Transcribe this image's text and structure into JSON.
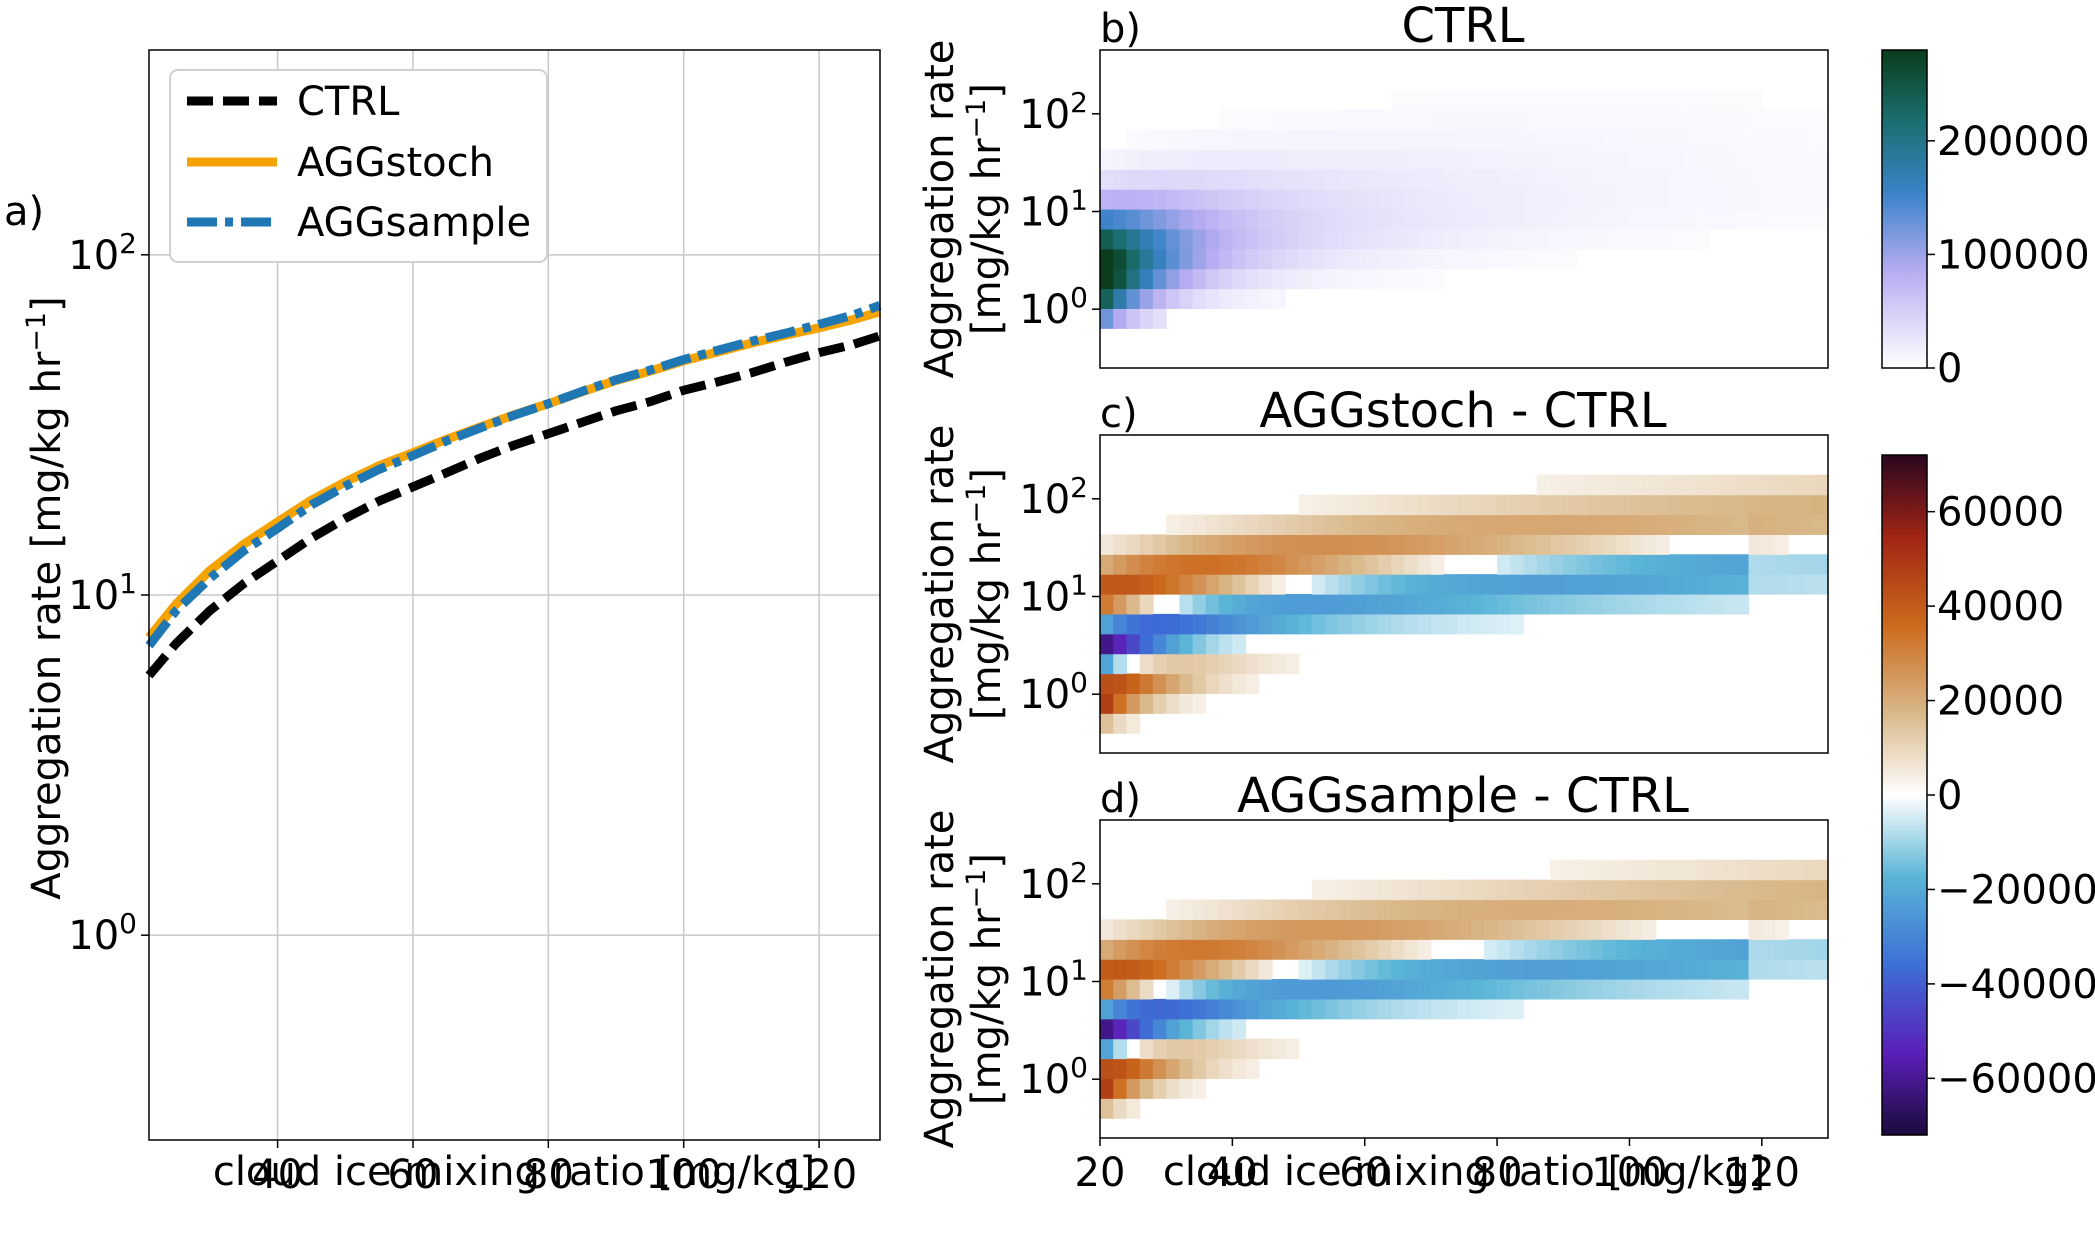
{
  "chart_data": [
    {
      "panel": "a)",
      "type": "line",
      "title": "",
      "xlabel": "cloud ice mixing ratio [mg/kg]",
      "ylabel": "Aggregation rate [mg/kg hr",
      "ylabel_sup": "−1",
      "ylabel_end": "]",
      "xlim": [
        21,
        129
      ],
      "ylim": [
        0.25,
        400
      ],
      "yscale": "log",
      "grid": true,
      "legend_position": "top-left",
      "xticks": [
        40,
        60,
        80,
        100,
        120
      ],
      "yticks": [
        {
          "base": "10",
          "exp": "0",
          "value": 1
        },
        {
          "base": "10",
          "exp": "1",
          "value": 10
        },
        {
          "base": "10",
          "exp": "2",
          "value": 100
        }
      ],
      "x": [
        21,
        25,
        30,
        35,
        40,
        45,
        50,
        55,
        60,
        65,
        70,
        75,
        80,
        85,
        90,
        95,
        100,
        105,
        110,
        115,
        120,
        125,
        129
      ],
      "series": [
        {
          "name": "CTRL",
          "color": "#000000",
          "dash": "dashed",
          "values": [
            5.8,
            7.2,
            9.0,
            10.8,
            12.6,
            14.7,
            16.8,
            18.9,
            20.8,
            22.9,
            25.3,
            27.6,
            29.8,
            32.2,
            34.8,
            37.0,
            40.0,
            42.3,
            45.0,
            48.3,
            51.6,
            54.5,
            57.8
          ]
        },
        {
          "name": "AGGstoch",
          "color": "#f5a300",
          "dash": "solid",
          "values": [
            7.5,
            9.4,
            11.8,
            14.1,
            16.4,
            19.0,
            21.5,
            24.0,
            26.2,
            28.7,
            31.2,
            33.9,
            36.5,
            39.6,
            42.7,
            45.5,
            48.8,
            51.8,
            55.0,
            58.0,
            61.0,
            64.5,
            68.0
          ]
        },
        {
          "name": "AGGsample",
          "color": "#1f77b4",
          "dash": "dashdot",
          "values": [
            7.1,
            9.0,
            11.2,
            13.5,
            15.7,
            18.4,
            20.9,
            23.4,
            25.7,
            28.4,
            31.0,
            33.8,
            36.5,
            39.7,
            42.9,
            45.8,
            49.2,
            52.4,
            55.7,
            58.8,
            62.5,
            66.5,
            71.0
          ]
        }
      ]
    },
    {
      "panel": "b)",
      "type": "heatmap",
      "title": "CTRL",
      "xlabel": "",
      "ylabel_line1": "Aggregation rate",
      "ylabel_line2": "[mg/kg hr",
      "ylabel_sup": "−1",
      "ylabel_end": "]",
      "xlim": [
        20,
        130
      ],
      "ylim": [
        0.25,
        450
      ],
      "yscale": "log",
      "colormap": "PuBuGn-like",
      "colorbar_range": [
        0,
        280000
      ],
      "colorbar_ticks": [
        "0",
        "100000",
        "200000"
      ],
      "colorbar_tick_values": [
        0,
        100000,
        200000
      ],
      "field": "counts of samples per bin (peak ≈ 2.8e5 at x≈20–22 mg/kg, rate ≈ 2–3 mg/kg/hr, decaying with x; band follows aggregation curve)"
    },
    {
      "panel": "c)",
      "type": "heatmap",
      "title": "AGGstoch - CTRL",
      "xlabel": "",
      "ylabel_line1": "Aggregation rate",
      "ylabel_line2": "[mg/kg hr",
      "ylabel_sup": "−1",
      "ylabel_end": "]",
      "xlim": [
        20,
        130
      ],
      "ylim": [
        0.25,
        450
      ],
      "yscale": "log",
      "colormap": "diverging (PuOr-like with blue)",
      "field": "difference (negative band near CTRL curve, positive bands above and below)"
    },
    {
      "panel": "d)",
      "type": "heatmap",
      "title": "AGGsample - CTRL",
      "xlabel": "cloud ice mixing ratio [mg/kg]",
      "ylabel_line1": "Aggregation rate",
      "ylabel_line2": "[mg/kg hr",
      "ylabel_sup": "−1",
      "ylabel_end": "]",
      "xlim": [
        20,
        130
      ],
      "ylim": [
        0.25,
        450
      ],
      "yscale": "log",
      "xticks": [
        20,
        40,
        60,
        80,
        100,
        120
      ],
      "colorbar_range": [
        -72000,
        72000
      ],
      "colorbar_ticks": [
        "−60000",
        "−40000",
        "−20000",
        "0",
        "20000",
        "40000",
        "60000"
      ],
      "colorbar_tick_values": [
        -60000,
        -40000,
        -20000,
        0,
        20000,
        40000,
        60000
      ],
      "field": "difference (similar pattern to c)"
    }
  ],
  "heatmap_yticks": [
    {
      "base": "10",
      "exp": "0",
      "value": 1
    },
    {
      "base": "10",
      "exp": "1",
      "value": 10
    },
    {
      "base": "10",
      "exp": "2",
      "value": 100
    }
  ]
}
